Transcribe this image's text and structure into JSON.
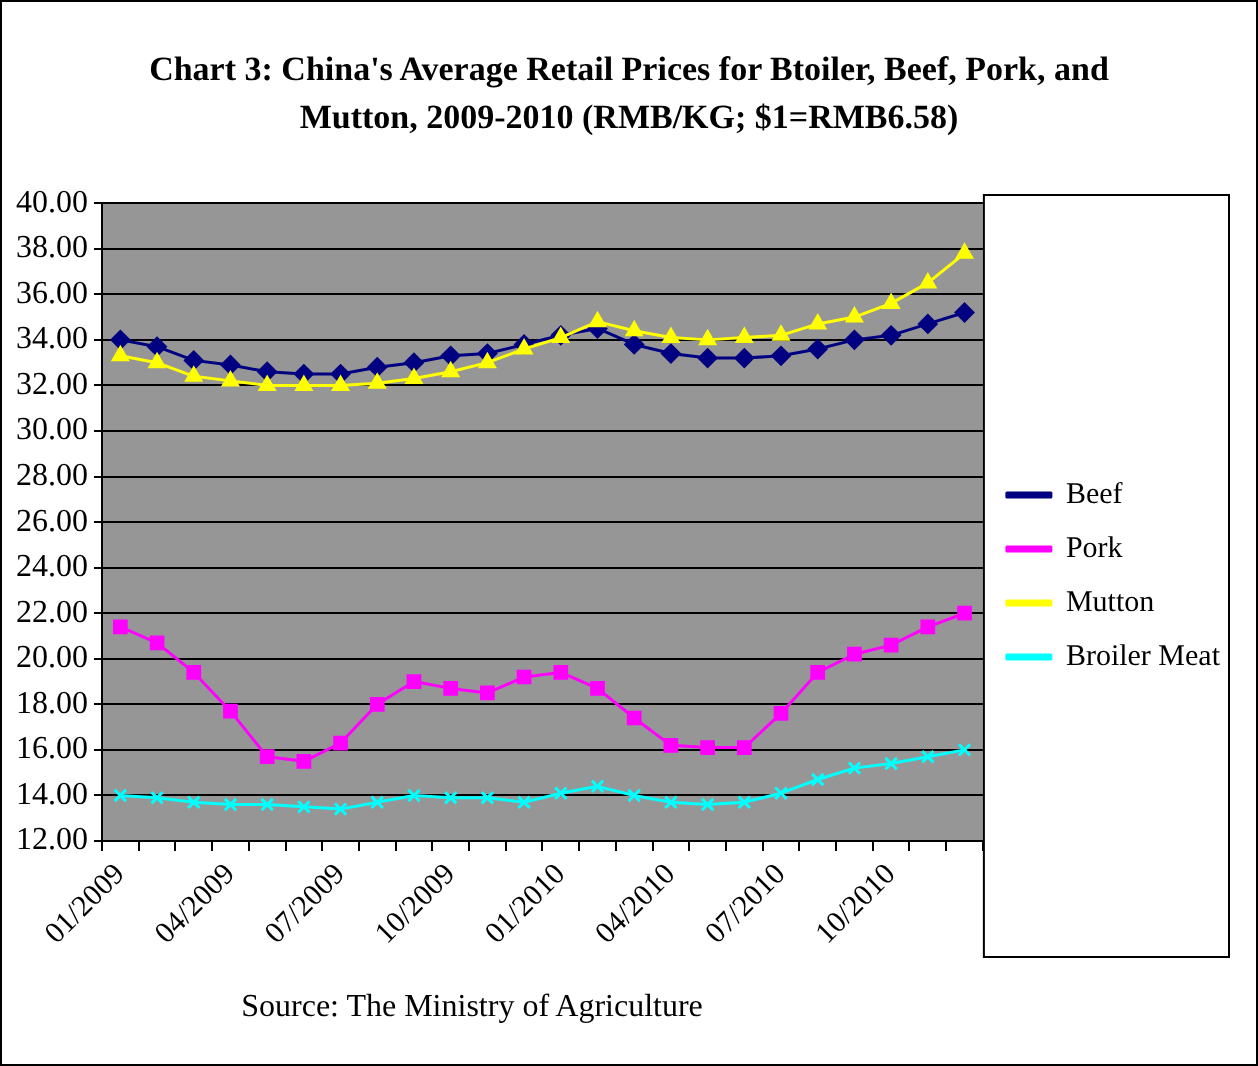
{
  "chart_data": {
    "type": "line",
    "title": "Chart 3: China's Average Retail Prices for Btoiler, Beef, Pork, and Mutton, 2009-2010 (RMB/KG; $1=RMB6.58)",
    "categories": [
      "01/2009",
      null,
      null,
      "04/2009",
      null,
      null,
      "07/2009",
      null,
      null,
      "10/2009",
      null,
      null,
      "01/2010",
      null,
      null,
      "04/2010",
      null,
      null,
      "07/2010",
      null,
      null,
      "10/2010",
      null,
      null
    ],
    "series": [
      {
        "name": "Beef",
        "color": "#000080",
        "marker": "diamond",
        "values": [
          34.0,
          33.7,
          33.1,
          32.9,
          32.6,
          32.5,
          32.5,
          32.8,
          33.0,
          33.3,
          33.4,
          33.8,
          34.2,
          34.5,
          33.8,
          33.4,
          33.2,
          33.2,
          33.3,
          33.6,
          34.0,
          34.2,
          34.7,
          35.2
        ]
      },
      {
        "name": "Pork",
        "color": "#ff00ff",
        "marker": "square",
        "values": [
          21.4,
          20.7,
          19.4,
          17.7,
          15.7,
          15.5,
          16.3,
          18.0,
          19.0,
          18.7,
          18.5,
          19.2,
          19.4,
          18.7,
          17.4,
          16.2,
          16.1,
          16.1,
          17.6,
          19.4,
          20.2,
          20.6,
          21.4,
          22.0
        ]
      },
      {
        "name": "Mutton",
        "color": "#ffff00",
        "marker": "triangle",
        "values": [
          33.3,
          33.0,
          32.4,
          32.2,
          32.0,
          32.0,
          32.0,
          32.1,
          32.3,
          32.6,
          33.0,
          33.6,
          34.1,
          34.8,
          34.4,
          34.1,
          34.0,
          34.1,
          34.2,
          34.7,
          35.0,
          35.6,
          36.5,
          37.8
        ]
      },
      {
        "name": "Broiler Meat",
        "color": "#00ffff",
        "marker": "cross",
        "values": [
          14.0,
          13.9,
          13.7,
          13.6,
          13.6,
          13.5,
          13.4,
          13.7,
          14.0,
          13.9,
          13.9,
          13.7,
          14.1,
          14.4,
          14.0,
          13.7,
          13.6,
          13.7,
          14.1,
          14.7,
          15.2,
          15.4,
          15.7,
          16.0
        ]
      }
    ],
    "ylim": [
      12,
      40
    ],
    "yticks": [
      {
        "value": 12,
        "label": "12.00"
      },
      {
        "value": 14,
        "label": "14.00"
      },
      {
        "value": 16,
        "label": "16.00"
      },
      {
        "value": 18,
        "label": "18.00"
      },
      {
        "value": 20,
        "label": "20.00"
      },
      {
        "value": 22,
        "label": "22.00"
      },
      {
        "value": 24,
        "label": "24.00"
      },
      {
        "value": 26,
        "label": "26.00"
      },
      {
        "value": 28,
        "label": "28.00"
      },
      {
        "value": 30,
        "label": "30.00"
      },
      {
        "value": 32,
        "label": "32.00"
      },
      {
        "value": 34,
        "label": "34.00"
      },
      {
        "value": 36,
        "label": "36.00"
      },
      {
        "value": 38,
        "label": "38.00"
      },
      {
        "value": 40,
        "label": "40.00"
      }
    ],
    "grid": "y",
    "legend": "right",
    "line_style": "solid",
    "annotations": [
      "Source: The Ministry of Agriculture"
    ]
  }
}
